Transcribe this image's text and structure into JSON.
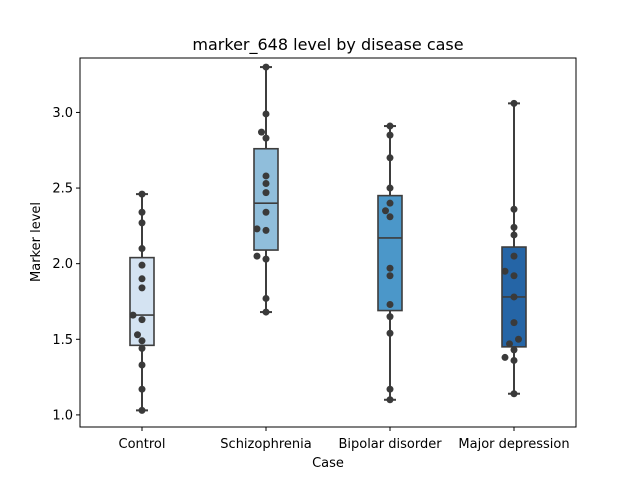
{
  "chart_data": {
    "type": "box",
    "title": "marker_648 level by disease case",
    "xlabel": "Case",
    "ylabel": "Marker level",
    "ylim": [
      0.92,
      3.36
    ],
    "yticks": [
      "1.0",
      "1.5",
      "2.0",
      "2.5",
      "3.0"
    ],
    "grid": false,
    "categories": [
      "Control",
      "Schizophrenia",
      "Bipolar disorder",
      "Major depression"
    ],
    "colors": [
      "#d4e3f2",
      "#90bedb",
      "#4b97c9",
      "#2565a6"
    ],
    "boxes": [
      {
        "category": "Control",
        "whisker_low": 1.03,
        "q1": 1.46,
        "median": 1.66,
        "q3": 2.04,
        "whisker_high": 2.46
      },
      {
        "category": "Schizophrenia",
        "whisker_low": 1.68,
        "q1": 2.09,
        "median": 2.4,
        "q3": 2.76,
        "whisker_high": 3.3
      },
      {
        "category": "Bipolar disorder",
        "whisker_low": 1.1,
        "q1": 1.69,
        "median": 2.17,
        "q3": 2.45,
        "whisker_high": 2.91
      },
      {
        "category": "Major depression",
        "whisker_low": 1.14,
        "q1": 1.45,
        "median": 1.78,
        "q3": 2.11,
        "whisker_high": 3.06
      }
    ],
    "points": [
      {
        "category": "Control",
        "values": [
          1.03,
          1.17,
          1.33,
          1.44,
          1.49,
          1.53,
          1.63,
          1.66,
          1.84,
          1.9,
          1.99,
          2.1,
          2.27,
          2.34,
          2.46
        ]
      },
      {
        "category": "Schizophrenia",
        "values": [
          1.68,
          1.77,
          2.03,
          2.05,
          2.22,
          2.23,
          2.34,
          2.47,
          2.53,
          2.58,
          2.83,
          2.87,
          2.99,
          3.3
        ]
      },
      {
        "category": "Bipolar disorder",
        "values": [
          1.1,
          1.17,
          1.54,
          1.65,
          1.73,
          1.92,
          1.97,
          2.31,
          2.35,
          2.4,
          2.5,
          2.7,
          2.85,
          2.91
        ]
      },
      {
        "category": "Major depression",
        "values": [
          1.14,
          1.36,
          1.38,
          1.43,
          1.47,
          1.5,
          1.61,
          1.78,
          1.92,
          1.95,
          2.05,
          2.19,
          2.24,
          2.36,
          3.06
        ]
      }
    ]
  }
}
